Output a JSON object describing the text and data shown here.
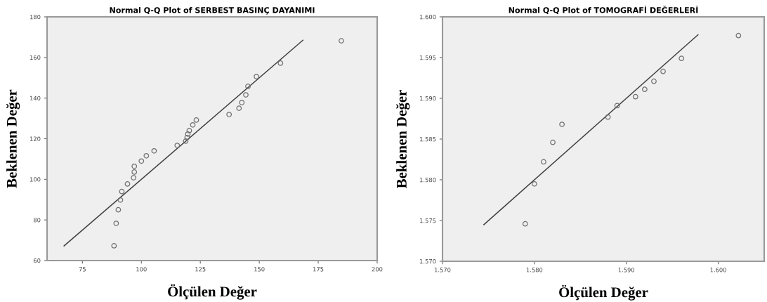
{
  "chart_data": [
    {
      "type": "scatter",
      "title": "Normal Q-Q Plot of SERBEST BASINÇ DAYANIMI",
      "xlabel": "Ölçülen Değer",
      "ylabel": "Beklenen Değer",
      "xlim": [
        60,
        200
      ],
      "ylim": [
        60,
        180
      ],
      "xticks": [
        75,
        100,
        125,
        150,
        175,
        200
      ],
      "yticks": [
        60,
        80,
        100,
        120,
        140,
        160,
        180
      ],
      "series": [
        {
          "marker": "circle",
          "color": "#707070",
          "x": [
            88.4,
            89.3,
            90.2,
            91.1,
            91.7,
            94.1,
            96.7,
            97.0,
            97.0,
            100,
            102.1,
            105.4,
            115.2,
            118.8,
            119.4,
            119.7,
            120.3,
            121.8,
            123.3,
            137.2,
            141.4,
            142.6,
            144.3,
            145.2,
            148.8,
            159,
            184.8
          ],
          "values": [
            67.3,
            78.3,
            85,
            89.8,
            94,
            97.7,
            100.8,
            103.6,
            106.4,
            109,
            111.6,
            114,
            116.7,
            118.8,
            120.6,
            122.3,
            124,
            126.8,
            129.2,
            131.9,
            135,
            137.8,
            141.6,
            145.8,
            150.6,
            157.2,
            168.2
          ]
        },
        {
          "type": "line",
          "color": "#404040",
          "x": [
            67.2,
            168.5
          ],
          "values": [
            67.2,
            168.5
          ]
        }
      ]
    },
    {
      "type": "scatter",
      "title": "Normal Q-Q Plot of TOMOGRAFİ DEĞERLERİ",
      "xlabel": "Ölçülen Değer",
      "ylabel": "Beklenen Değer",
      "xlim": [
        1.57,
        1.605
      ],
      "ylim": [
        1.57,
        1.6
      ],
      "xticks": [
        {
          "value": 1.57,
          "label": "1.570"
        },
        {
          "value": 1.58,
          "label": "1.580"
        },
        {
          "value": 1.59,
          "label": "1.590"
        },
        {
          "value": 1.6,
          "label": "1.600"
        }
      ],
      "yticks": [
        {
          "value": 1.57,
          "label": "1.570"
        },
        {
          "value": 1.575,
          "label": "1.575"
        },
        {
          "value": 1.58,
          "label": "1.580"
        },
        {
          "value": 1.585,
          "label": "1.585"
        },
        {
          "value": 1.59,
          "label": "1.590"
        },
        {
          "value": 1.595,
          "label": "1.595"
        },
        {
          "value": 1.6,
          "label": "1.600"
        }
      ],
      "series": [
        {
          "marker": "circle",
          "color": "#707070",
          "x": [
            1.579,
            1.58,
            1.581,
            1.582,
            1.583,
            1.588,
            1.589,
            1.591,
            1.592,
            1.593,
            1.594,
            1.596,
            1.6022
          ],
          "values": [
            1.5746,
            1.5795,
            1.5822,
            1.5846,
            1.5868,
            1.5877,
            1.5891,
            1.5902,
            1.5911,
            1.5921,
            1.5933,
            1.5949,
            1.5977
          ]
        },
        {
          "type": "line",
          "color": "#404040",
          "x": [
            1.5745,
            1.5978
          ],
          "values": [
            1.5745,
            1.5978
          ]
        }
      ]
    }
  ]
}
